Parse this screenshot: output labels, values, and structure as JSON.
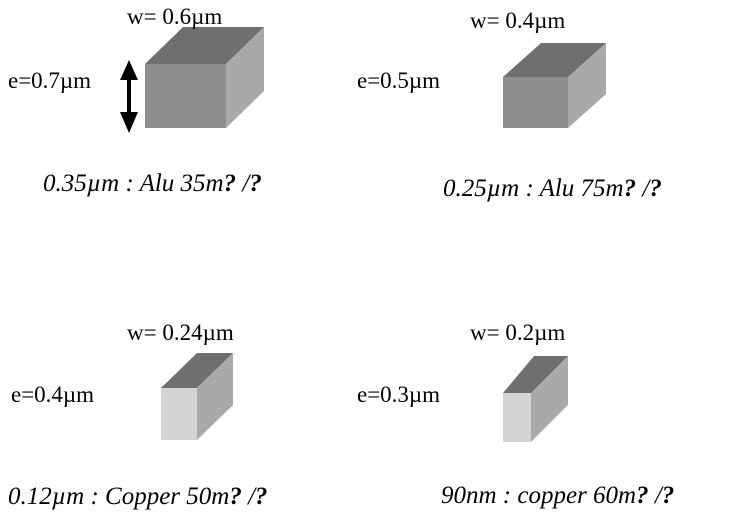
{
  "panels": [
    {
      "w": "w= 0.6µm",
      "e": "e=0.7µm",
      "caption_main": "0.35µm : Alu 35m",
      "caption_q1": "?",
      "caption_sep": " /",
      "caption_q2": "?"
    },
    {
      "w": "w= 0.4µm",
      "e": "e=0.5µm",
      "caption_main": "0.25µm : Alu 75m",
      "caption_q1": "?",
      "caption_sep": " /",
      "caption_q2": "?"
    },
    {
      "w": "w= 0.24µm",
      "e": "e=0.4µm",
      "caption_main": "0.12µm : Copper 50m",
      "caption_q1": "?",
      "caption_sep": " /",
      "caption_q2": "?"
    },
    {
      "w": "w= 0.2µm",
      "e": "e=0.3µm",
      "caption_main": "90nm : copper 60m",
      "caption_q1": "?",
      "caption_sep": " /",
      "caption_q2": "?"
    }
  ],
  "colors": {
    "alu_top": "#6f6f6f",
    "alu_front": "#8f8f8f",
    "alu_side": "#a9a9a9",
    "copper_front": "#d4d4d4",
    "arrow": "#000000"
  }
}
